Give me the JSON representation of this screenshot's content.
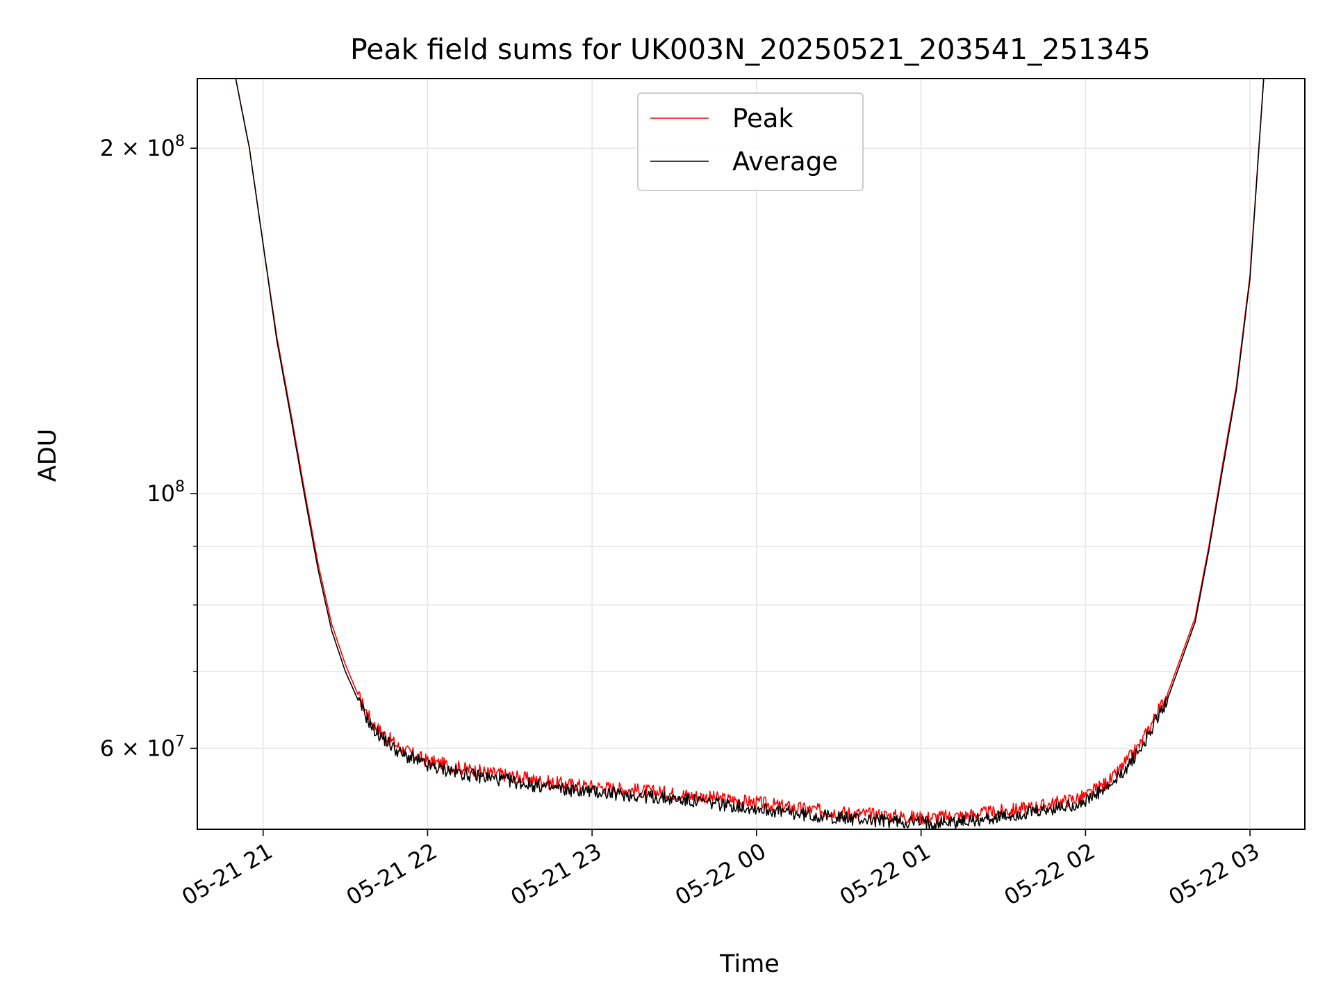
{
  "chart_data": {
    "type": "line",
    "title": "Peak field sums for UK003N_20250521_203541_251345",
    "xlabel": "Time",
    "ylabel": "ADU",
    "yscale": "log",
    "ylim": [
      51000000,
      230000000
    ],
    "xlim": [
      "2025-05-21 20:36",
      "2025-05-22 03:20"
    ],
    "x_ticks": [
      "05-21 21",
      "05-21 22",
      "05-21 23",
      "05-22 00",
      "05-22 01",
      "05-22 02",
      "05-22 03"
    ],
    "y_ticks": [
      {
        "value": 200000000,
        "mantissa": "2",
        "exponent": "8"
      },
      {
        "value": 100000000,
        "mantissa": "",
        "exponent": "8"
      },
      {
        "value": 60000000,
        "mantissa": "6",
        "exponent": "7"
      }
    ],
    "grid": true,
    "legend_position": "top-center",
    "series": [
      {
        "name": "Peak",
        "color": "#ff0000",
        "x": [
          "2025-05-21 20:36",
          "2025-05-21 20:40",
          "2025-05-21 20:45",
          "2025-05-21 20:50",
          "2025-05-21 20:55",
          "2025-05-21 21:00",
          "2025-05-21 21:05",
          "2025-05-21 21:10",
          "2025-05-21 21:15",
          "2025-05-21 21:20",
          "2025-05-21 21:25",
          "2025-05-21 21:30",
          "2025-05-21 21:35",
          "2025-05-21 21:40",
          "2025-05-21 21:50",
          "2025-05-21 22:00",
          "2025-05-21 22:15",
          "2025-05-21 22:30",
          "2025-05-21 22:45",
          "2025-05-21 23:00",
          "2025-05-21 23:15",
          "2025-05-21 23:30",
          "2025-05-21 23:45",
          "2025-05-22 00:00",
          "2025-05-22 00:15",
          "2025-05-22 00:30",
          "2025-05-22 00:45",
          "2025-05-22 01:00",
          "2025-05-22 01:15",
          "2025-05-22 01:30",
          "2025-05-22 01:45",
          "2025-05-22 02:00",
          "2025-05-22 02:10",
          "2025-05-22 02:20",
          "2025-05-22 02:30",
          "2025-05-22 02:40",
          "2025-05-22 02:45",
          "2025-05-22 02:50",
          "2025-05-22 02:55",
          "2025-05-22 03:00",
          "2025-05-22 03:05",
          "2025-05-22 03:20"
        ],
        "values": [
          230000000,
          230000000,
          230000000,
          230000000,
          200000000,
          165000000,
          137000000,
          118000000,
          101000000,
          87000000,
          77000000,
          71000000,
          66500000,
          63000000,
          60000000,
          58500000,
          57500000,
          56800000,
          56000000,
          55600000,
          55200000,
          54800000,
          54300000,
          53800000,
          53200000,
          52800000,
          52500000,
          52200000,
          52400000,
          52900000,
          53500000,
          54500000,
          56500000,
          60500000,
          67000000,
          78000000,
          90000000,
          106000000,
          124000000,
          155000000,
          230000000,
          230000000
        ]
      },
      {
        "name": "Average",
        "color": "#000000",
        "x": [
          "2025-05-21 20:36",
          "2025-05-21 20:40",
          "2025-05-21 20:45",
          "2025-05-21 20:50",
          "2025-05-21 20:55",
          "2025-05-21 21:00",
          "2025-05-21 21:05",
          "2025-05-21 21:10",
          "2025-05-21 21:15",
          "2025-05-21 21:20",
          "2025-05-21 21:25",
          "2025-05-21 21:30",
          "2025-05-21 21:35",
          "2025-05-21 21:40",
          "2025-05-21 21:50",
          "2025-05-21 22:00",
          "2025-05-21 22:15",
          "2025-05-21 22:30",
          "2025-05-21 22:45",
          "2025-05-21 23:00",
          "2025-05-21 23:15",
          "2025-05-21 23:30",
          "2025-05-21 23:45",
          "2025-05-22 00:00",
          "2025-05-22 00:15",
          "2025-05-22 00:30",
          "2025-05-22 00:45",
          "2025-05-22 01:00",
          "2025-05-22 01:15",
          "2025-05-22 01:30",
          "2025-05-22 01:45",
          "2025-05-22 02:00",
          "2025-05-22 02:10",
          "2025-05-22 02:20",
          "2025-05-22 02:30",
          "2025-05-22 02:40",
          "2025-05-22 02:45",
          "2025-05-22 02:50",
          "2025-05-22 02:55",
          "2025-05-22 03:00",
          "2025-05-22 03:05",
          "2025-05-22 03:20"
        ],
        "values": [
          230000000,
          230000000,
          230000000,
          230000000,
          200000000,
          165000000,
          136000000,
          117000000,
          100000000,
          86000000,
          76000000,
          70000000,
          65800000,
          62400000,
          59400000,
          57900000,
          56900000,
          56200000,
          55400000,
          55000000,
          54600000,
          54200000,
          53700000,
          53200000,
          52600000,
          52200000,
          51900000,
          51700000,
          51800000,
          52300000,
          52900000,
          53900000,
          55800000,
          59800000,
          66300000,
          77300000,
          89300000,
          105000000,
          123000000,
          154000000,
          230000000,
          230000000
        ]
      }
    ]
  }
}
